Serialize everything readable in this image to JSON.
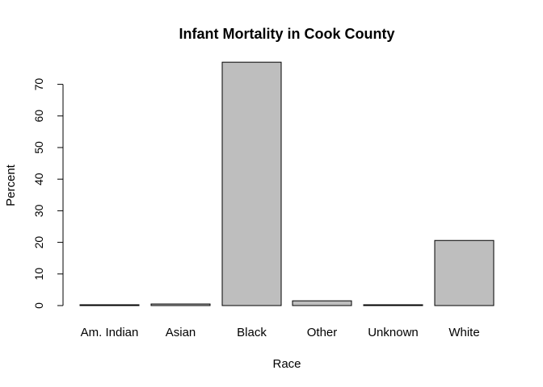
{
  "chart_data": {
    "type": "bar",
    "title": "Infant Mortality in Cook County",
    "xlabel": "Race",
    "ylabel": "Percent",
    "categories": [
      "Am. Indian",
      "Asian",
      "Black",
      "Other",
      "Unknown",
      "White"
    ],
    "values": [
      0.15,
      0.5,
      77.0,
      1.5,
      0.2,
      20.6
    ],
    "yticks": [
      0,
      10,
      20,
      30,
      40,
      50,
      60,
      70
    ],
    "ylim": [
      0,
      77
    ],
    "bar_color": "#bebebe",
    "bar_stroke": "#000000",
    "grid": false,
    "legend": "none"
  }
}
